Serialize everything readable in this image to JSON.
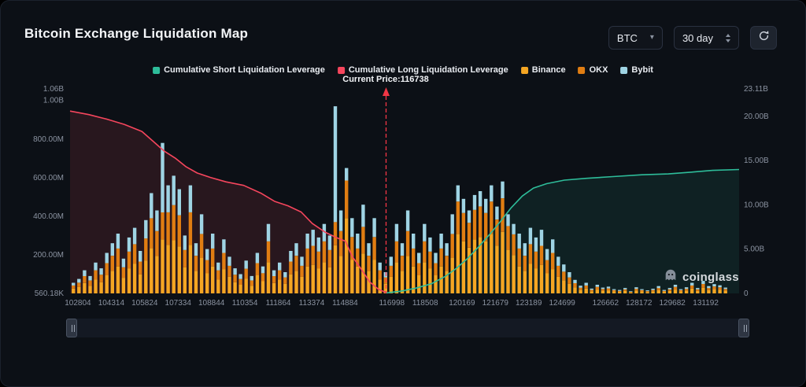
{
  "header": {
    "title": "Bitcoin Exchange Liquidation Map"
  },
  "controls": {
    "symbol": "BTC",
    "period": "30 day"
  },
  "legend": [
    {
      "label": "Cumulative Short Liquidation Leverage",
      "color": "#2ebd9a"
    },
    {
      "label": "Cumulative Long Liquidation Leverage",
      "color": "#f6465d"
    },
    {
      "label": "Binance",
      "color": "#f5a623"
    },
    {
      "label": "OKX",
      "color": "#e07d12"
    },
    {
      "label": "Bybit",
      "color": "#9fd4e4"
    }
  ],
  "watermark": {
    "text": "coinglass"
  },
  "chart_data": {
    "type": "bar",
    "title": "Bitcoin Exchange Liquidation Map",
    "current_price": 116738,
    "current_price_label": "Current Price:116738",
    "current_price_line_color": "#f23645",
    "x_domain": [
      102450,
      132700
    ],
    "x_ticks": [
      "102804",
      "104314",
      "105824",
      "107334",
      "108844",
      "110354",
      "111864",
      "113374",
      "114884",
      "116998",
      "118508",
      "120169",
      "121679",
      "123189",
      "124699",
      "126662",
      "128172",
      "129682",
      "131192"
    ],
    "left_axis": {
      "max_millions": 1060,
      "ticks": [
        {
          "label": "1.06B",
          "value_m": 1060
        },
        {
          "label": "1.00B",
          "value_m": 1000
        },
        {
          "label": "800.00M",
          "value_m": 800
        },
        {
          "label": "600.00M",
          "value_m": 600
        },
        {
          "label": "400.00M",
          "value_m": 400
        },
        {
          "label": "200.00M",
          "value_m": 200
        },
        {
          "label": "560.18K",
          "value_m": 0.56
        }
      ]
    },
    "right_axis": {
      "max_billions": 23.11,
      "ticks": [
        {
          "label": "23.11B",
          "value_b": 23.11
        },
        {
          "label": "20.00B",
          "value_b": 20
        },
        {
          "label": "15.00B",
          "value_b": 15
        },
        {
          "label": "10.00B",
          "value_b": 10
        },
        {
          "label": "5.00B",
          "value_b": 5
        },
        {
          "label": "0",
          "value_b": 0
        }
      ]
    },
    "bars_format": "[price, binance_M, okx_M, bybit_M] in millions USD (estimated)",
    "bars": [
      [
        102600,
        25,
        16,
        14
      ],
      [
        102852,
        34,
        22,
        19
      ],
      [
        103104,
        54,
        36,
        30
      ],
      [
        103356,
        40,
        27,
        23
      ],
      [
        103608,
        72,
        48,
        40
      ],
      [
        103860,
        58,
        39,
        33
      ],
      [
        104112,
        94,
        63,
        53
      ],
      [
        104364,
        117,
        78,
        65
      ],
      [
        104616,
        140,
        93,
        77
      ],
      [
        104868,
        81,
        54,
        45
      ],
      [
        105120,
        130,
        87,
        73
      ],
      [
        105372,
        153,
        102,
        85
      ],
      [
        105624,
        99,
        66,
        55
      ],
      [
        105876,
        171,
        114,
        95
      ],
      [
        106128,
        234,
        156,
        130
      ],
      [
        106380,
        194,
        129,
        107
      ],
      [
        106632,
        280,
        140,
        360
      ],
      [
        106884,
        252,
        168,
        140
      ],
      [
        107136,
        275,
        183,
        152
      ],
      [
        107388,
        243,
        162,
        135
      ],
      [
        107640,
        135,
        90,
        75
      ],
      [
        107892,
        252,
        168,
        140
      ],
      [
        108144,
        117,
        78,
        65
      ],
      [
        108396,
        185,
        123,
        102
      ],
      [
        108648,
        104,
        69,
        57
      ],
      [
        108900,
        140,
        93,
        77
      ],
      [
        109152,
        72,
        48,
        40
      ],
      [
        109404,
        126,
        84,
        70
      ],
      [
        109656,
        86,
        57,
        47
      ],
      [
        109908,
        58,
        39,
        33
      ],
      [
        110160,
        45,
        30,
        25
      ],
      [
        110412,
        77,
        51,
        42
      ],
      [
        110664,
        40,
        27,
        23
      ],
      [
        110916,
        94,
        63,
        53
      ],
      [
        111168,
        63,
        42,
        35
      ],
      [
        111420,
        162,
        108,
        90
      ],
      [
        111672,
        54,
        36,
        30
      ],
      [
        111924,
        72,
        48,
        40
      ],
      [
        112176,
        50,
        33,
        27
      ],
      [
        112428,
        99,
        66,
        55
      ],
      [
        112680,
        117,
        78,
        65
      ],
      [
        112932,
        86,
        57,
        47
      ],
      [
        113184,
        140,
        93,
        77
      ],
      [
        113436,
        148,
        99,
        83
      ],
      [
        113688,
        130,
        87,
        73
      ],
      [
        113940,
        162,
        108,
        90
      ],
      [
        114192,
        135,
        90,
        75
      ],
      [
        114444,
        250,
        120,
        600
      ],
      [
        114696,
        194,
        129,
        107
      ],
      [
        114948,
        390,
        195,
        65
      ],
      [
        115200,
        175,
        117,
        98
      ],
      [
        115452,
        140,
        93,
        77
      ],
      [
        115704,
        207,
        138,
        115
      ],
      [
        115956,
        117,
        78,
        65
      ],
      [
        116208,
        175,
        117,
        98
      ],
      [
        116460,
        72,
        48,
        40
      ],
      [
        116712,
        50,
        33,
        27
      ],
      [
        116964,
        86,
        57,
        47
      ],
      [
        117216,
        162,
        108,
        90
      ],
      [
        117468,
        117,
        78,
        65
      ],
      [
        117720,
        194,
        129,
        107
      ],
      [
        117972,
        140,
        93,
        77
      ],
      [
        118224,
        94,
        63,
        53
      ],
      [
        118476,
        162,
        108,
        90
      ],
      [
        118728,
        130,
        87,
        73
      ],
      [
        118980,
        94,
        63,
        53
      ],
      [
        119232,
        140,
        93,
        77
      ],
      [
        119484,
        117,
        78,
        65
      ],
      [
        119736,
        185,
        123,
        102
      ],
      [
        119988,
        308,
        168,
        84
      ],
      [
        120240,
        270,
        147,
        73
      ],
      [
        120492,
        237,
        129,
        64
      ],
      [
        120744,
        280,
        153,
        77
      ],
      [
        120996,
        292,
        159,
        79
      ],
      [
        121248,
        270,
        147,
        73
      ],
      [
        121500,
        308,
        168,
        84
      ],
      [
        121752,
        248,
        135,
        67
      ],
      [
        122004,
        319,
        174,
        87
      ],
      [
        122256,
        226,
        123,
        61
      ],
      [
        122508,
        198,
        108,
        54
      ],
      [
        122760,
        140,
        93,
        77
      ],
      [
        123012,
        117,
        78,
        65
      ],
      [
        123264,
        153,
        102,
        85
      ],
      [
        123516,
        130,
        87,
        73
      ],
      [
        123768,
        148,
        99,
        83
      ],
      [
        124020,
        104,
        69,
        57
      ],
      [
        124272,
        126,
        84,
        70
      ],
      [
        124524,
        86,
        57,
        47
      ],
      [
        124776,
        68,
        45,
        37
      ],
      [
        125028,
        50,
        33,
        27
      ],
      [
        125280,
        32,
        21,
        17
      ],
      [
        125532,
        18,
        12,
        10
      ],
      [
        125784,
        25,
        16,
        14
      ],
      [
        126036,
        11,
        8,
        6
      ],
      [
        126288,
        20,
        14,
        11
      ],
      [
        126540,
        14,
        9,
        7
      ],
      [
        126792,
        16,
        10,
        9
      ],
      [
        127044,
        10,
        7,
        5
      ],
      [
        127296,
        8,
        5,
        5
      ],
      [
        127548,
        13,
        8,
        7
      ],
      [
        127800,
        5,
        4,
        3
      ],
      [
        128052,
        14,
        10,
        8
      ],
      [
        128304,
        10,
        7,
        5
      ],
      [
        128556,
        7,
        5,
        4
      ],
      [
        128808,
        11,
        7,
        6
      ],
      [
        129060,
        17,
        11,
        10
      ],
      [
        129312,
        8,
        5,
        5
      ],
      [
        129564,
        13,
        8,
        7
      ],
      [
        129816,
        20,
        14,
        11
      ],
      [
        130068,
        10,
        7,
        5
      ],
      [
        130320,
        14,
        10,
        8
      ],
      [
        130572,
        25,
        16,
        14
      ],
      [
        130824,
        13,
        8,
        7
      ],
      [
        131076,
        29,
        20,
        16
      ],
      [
        131328,
        17,
        11,
        10
      ],
      [
        131580,
        22,
        14,
        12
      ],
      [
        131832,
        19,
        13,
        10
      ],
      [
        132084,
        14,
        9,
        7
      ]
    ],
    "lines": {
      "long_cumulative_billions": [
        [
          102450,
          20.6
        ],
        [
          103300,
          20.2
        ],
        [
          104100,
          19.7
        ],
        [
          104900,
          19.1
        ],
        [
          105700,
          18.3
        ],
        [
          106200,
          17.2
        ],
        [
          106700,
          16.1
        ],
        [
          107200,
          15.3
        ],
        [
          107700,
          14.3
        ],
        [
          108200,
          13.6
        ],
        [
          108800,
          13.1
        ],
        [
          109500,
          12.6
        ],
        [
          110300,
          12.2
        ],
        [
          111100,
          11.3
        ],
        [
          111700,
          10.4
        ],
        [
          112300,
          9.9
        ],
        [
          112900,
          9.2
        ],
        [
          113400,
          7.9
        ],
        [
          114000,
          6.9
        ],
        [
          114500,
          6.3
        ],
        [
          114900,
          5.9
        ],
        [
          115200,
          4.2
        ],
        [
          115600,
          2.8
        ],
        [
          116000,
          1.3
        ],
        [
          116400,
          0.45
        ],
        [
          116738,
          0.1
        ]
      ],
      "short_cumulative_billions": [
        [
          116738,
          0.05
        ],
        [
          117400,
          0.25
        ],
        [
          118100,
          0.6
        ],
        [
          118800,
          1.1
        ],
        [
          119400,
          1.9
        ],
        [
          119900,
          2.8
        ],
        [
          120400,
          3.9
        ],
        [
          120900,
          5.2
        ],
        [
          121400,
          6.6
        ],
        [
          121900,
          8.1
        ],
        [
          122400,
          9.7
        ],
        [
          122900,
          11.0
        ],
        [
          123400,
          11.9
        ],
        [
          124000,
          12.4
        ],
        [
          124800,
          12.8
        ],
        [
          125800,
          13.0
        ],
        [
          127000,
          13.2
        ],
        [
          128300,
          13.4
        ],
        [
          129500,
          13.5
        ],
        [
          130500,
          13.7
        ],
        [
          131500,
          13.9
        ],
        [
          132700,
          14.0
        ]
      ]
    }
  }
}
